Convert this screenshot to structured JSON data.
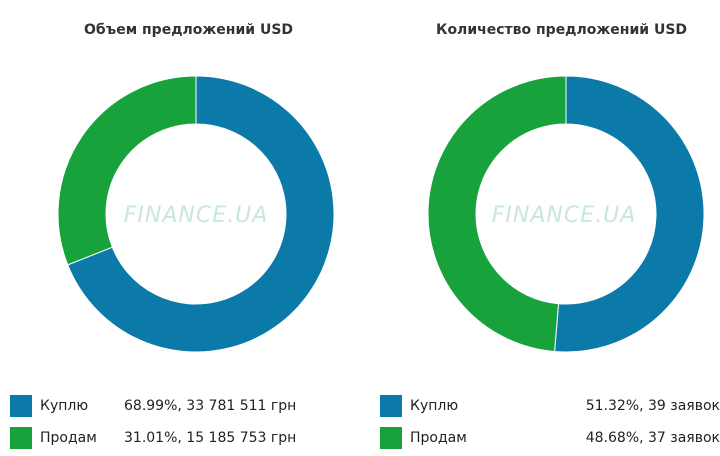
{
  "colors": {
    "buy": "#0b7aa8",
    "sell": "#17a23b",
    "watermark": "#c9e6e0"
  },
  "watermark": "FINANCE.UA",
  "chart_data": [
    {
      "type": "pie",
      "title": "Объем предложений USD",
      "categories": [
        "Куплю",
        "Продам"
      ],
      "values": [
        68.99,
        31.01
      ],
      "legend": [
        {
          "label": "Куплю",
          "value": "68.99%, 33 781 511 грн"
        },
        {
          "label": "Продам",
          "value": "31.01%, 15 185 753 грн"
        }
      ]
    },
    {
      "type": "pie",
      "title": "Количество предложений USD",
      "categories": [
        "Куплю",
        "Продам"
      ],
      "values": [
        51.32,
        48.68
      ],
      "legend": [
        {
          "label": "Куплю",
          "value": "51.32%, 39 заявок"
        },
        {
          "label": "Продам",
          "value": "48.68%, 37 заявок"
        }
      ]
    }
  ]
}
